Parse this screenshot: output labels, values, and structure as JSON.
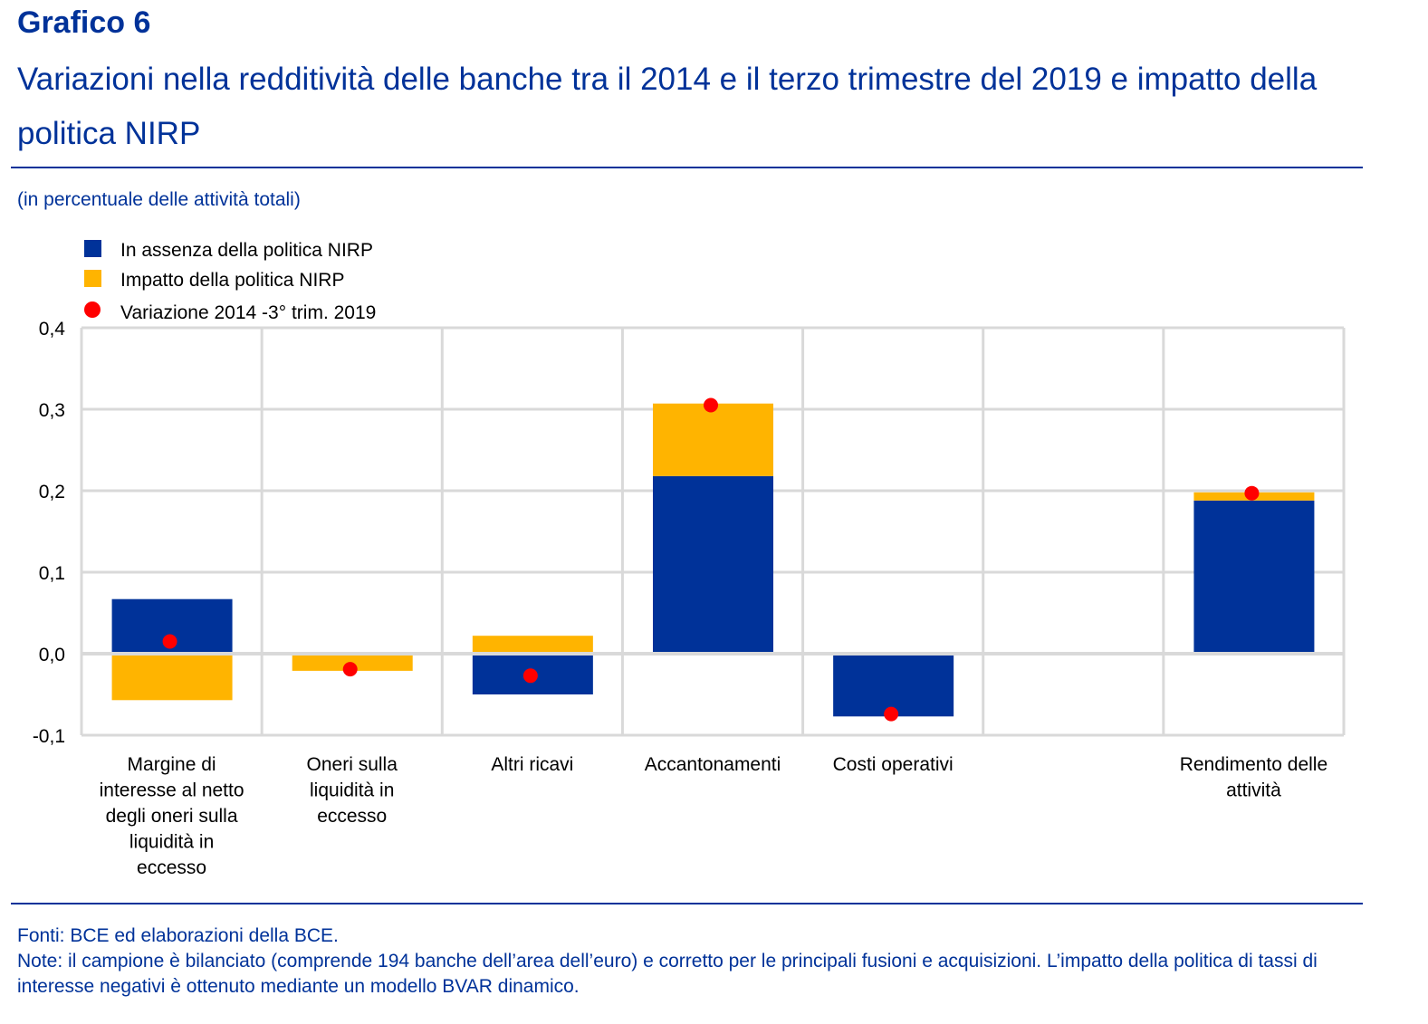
{
  "header": {
    "label": "Grafico 6",
    "title": "Variazioni nella redditività delle banche tra il 2014 e il terzo trimestre del 2019 e impatto della politica NIRP",
    "unit": "(in percentuale delle attività totali)"
  },
  "footer": {
    "sources": "Fonti: BCE ed elaborazioni della BCE.",
    "notes": "Note: il campione è bilanciato (comprende 194 banche dell’area dell’euro) e corretto per le principali fusioni e acquisizioni. L’impatto della politica di tassi di interesse negativi è ottenuto mediante un modello BVAR dinamico."
  },
  "chart_data": {
    "type": "bar",
    "stacked": true,
    "categories": [
      [
        "Margine di",
        "interesse al netto",
        "degli oneri sulla",
        "liquidità in",
        "eccesso"
      ],
      [
        "Oneri sulla",
        "liquidità in",
        "eccesso"
      ],
      [
        "Altri ricavi"
      ],
      [
        "Accantonamenti"
      ],
      [
        "Costi operativi"
      ],
      [
        ""
      ],
      [
        "Rendimento delle",
        "attività"
      ]
    ],
    "series": [
      {
        "name": "In assenza della politica NIRP",
        "type": "bar",
        "color": "#003299",
        "values": [
          0.067,
          0.0,
          -0.05,
          0.218,
          -0.077,
          null,
          0.188
        ]
      },
      {
        "name": "Impatto della politica NIRP",
        "type": "bar",
        "color": "#FFB400",
        "values": [
          -0.057,
          -0.021,
          0.022,
          0.089,
          0.0,
          null,
          0.01
        ]
      },
      {
        "name": "Variazione 2014 -3° trim. 2019",
        "type": "scatter",
        "color": "#FF0000",
        "values": [
          0.015,
          -0.019,
          -0.027,
          0.305,
          -0.074,
          null,
          0.197
        ]
      }
    ],
    "ylim": [
      -0.1,
      0.4
    ],
    "yticks": [
      "-0,1",
      "0,0",
      "0,1",
      "0,2",
      "0,3",
      "0,4"
    ],
    "grid": true,
    "legend": "top-left"
  }
}
